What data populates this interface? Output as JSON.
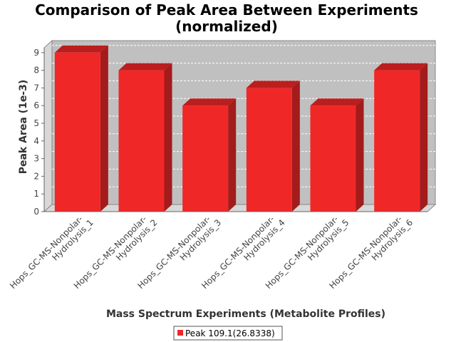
{
  "chart_data": {
    "type": "bar",
    "title": "Comparison of Peak Area Between Experiments",
    "subtitle": "(normalized)",
    "xlabel": "Mass Spectrum Experiments (Metabolite Profiles)",
    "ylabel": "Peak Area (1e-3)",
    "categories": [
      "Hops_GC-MS-Nonpolar-Hydrolysis_1",
      "Hops_GC-MS-Nonpolar-Hydrolysis_2",
      "Hops_GC-MS-Nonpolar-Hydrolysis_3",
      "Hops_GC-MS-Nonpolar-Hydrolysis_4",
      "Hops_GC-MS-Nonpolar-Hydrolysis_5",
      "Hops_GC-MS-Nonpolar-Hydrolysis_6"
    ],
    "category_lines": [
      [
        "Hops_GC-MS-Nonpolar-",
        "Hydrolysis_1"
      ],
      [
        "Hops_GC-MS-Nonpolar-",
        "Hydrolysis_2"
      ],
      [
        "Hops_GC-MS-Nonpolar-",
        "Hydrolysis_3"
      ],
      [
        "Hops_GC-MS-Nonpolar-",
        "Hydrolysis_4"
      ],
      [
        "Hops_GC-MS-Nonpolar-",
        "Hydrolysis_5"
      ],
      [
        "Hops_GC-MS-Nonpolar-",
        "Hydrolysis_6"
      ]
    ],
    "series": [
      {
        "name": "Peak 109.1(26.8338)",
        "values": [
          9,
          8,
          6,
          7,
          6,
          8
        ],
        "color": "#f02727"
      }
    ],
    "ylim": [
      0,
      9
    ],
    "yticks": [
      "0",
      "1",
      "2",
      "3",
      "4",
      "5",
      "6",
      "7",
      "8",
      "9"
    ],
    "grid": true,
    "legend_position": "bottom-center",
    "plot_background": "#c0c0c0"
  }
}
